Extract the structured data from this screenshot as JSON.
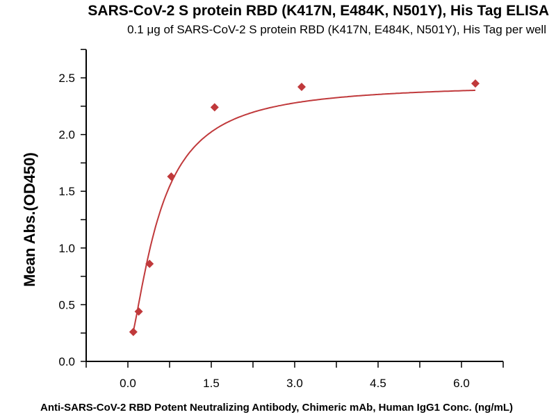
{
  "chart_data": {
    "type": "scatter",
    "title": "SARS-CoV-2 S protein RBD (K417N, E484K, N501Y), His Tag ELISA",
    "subtitle": "0.1 μg of SARS-CoV-2 S protein RBD (K417N, E484K, N501Y), His Tag per well",
    "xlabel": "Anti-SARS-CoV-2 RBD Potent Neutralizing Antibody, Chimeric mAb, Human IgG1 Conc. (ng/mL)",
    "ylabel": "Mean Abs.(OD450)",
    "xlim": [
      -0.75,
      6.75
    ],
    "ylim": [
      0,
      2.75
    ],
    "xticks": [
      "0.0",
      "1.5",
      "3.0",
      "4.5",
      "6.0"
    ],
    "yticks": [
      "0.0",
      "0.5",
      "1.0",
      "1.5",
      "2.0",
      "2.5"
    ],
    "series": [
      {
        "name": "Mean Abs.",
        "color": "#c0393b",
        "marker": "diamond",
        "fit": "4-parameter logistic curve",
        "x": [
          0.098,
          0.195,
          0.39,
          0.78,
          1.56,
          3.125,
          6.25
        ],
        "y": [
          0.26,
          0.44,
          0.86,
          1.63,
          2.24,
          2.42,
          2.45
        ]
      }
    ],
    "grid": false,
    "legend": "none"
  }
}
